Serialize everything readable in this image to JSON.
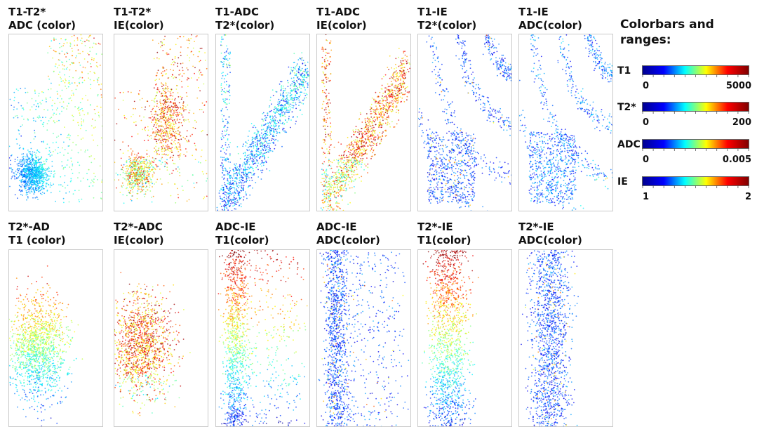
{
  "panels": [
    {
      "title": "T1-T2*\nADC (color)",
      "pattern": "lowmass",
      "palette": "cool_rising"
    },
    {
      "title": "T1-T2*\nIE(color)",
      "pattern": "lowmass_warm",
      "palette": "warm"
    },
    {
      "title": "T1-ADC\nT2*(color)",
      "pattern": "diagonal",
      "palette": "cool"
    },
    {
      "title": "T1-ADC\nIE(color)",
      "pattern": "diagonal_warm",
      "palette": "warm"
    },
    {
      "title": "T1-IE\nT2*(color)",
      "pattern": "arcs",
      "palette": "blue"
    },
    {
      "title": "T1-IE\nADC(color)",
      "pattern": "arcs",
      "palette": "blue_yellow"
    },
    {
      "title": "T2*-AD\nT1 (color)",
      "pattern": "cloud",
      "palette": "mixed"
    },
    {
      "title": "T2*-ADC\nIE(color)",
      "pattern": "cloud_warm",
      "palette": "warm"
    },
    {
      "title": "ADC-IE\nT1(color)",
      "pattern": "vertical",
      "palette": "mixed"
    },
    {
      "title": "ADC-IE\nADC(color)",
      "pattern": "vertical",
      "palette": "blue"
    },
    {
      "title": "T2*-IE\nT1(color)",
      "pattern": "vertical_wide",
      "palette": "mixed"
    },
    {
      "title": "T2*-IE\nADC(color)",
      "pattern": "vertical_wide",
      "palette": "blue"
    }
  ],
  "legend": {
    "title": "Colorbars and\nranges:",
    "colorbars": [
      {
        "label": "T1",
        "min": "0",
        "max": "5000"
      },
      {
        "label": "T2*",
        "min": "0",
        "max": "200"
      },
      {
        "label": "ADC",
        "min": "0",
        "max": "0.005"
      },
      {
        "label": "IE",
        "min": "1",
        "max": "2"
      }
    ],
    "colormap": "jet",
    "colors": [
      "#00008f",
      "#0000ff",
      "#00ffff",
      "#ffff00",
      "#ff0000",
      "#800000"
    ]
  }
}
